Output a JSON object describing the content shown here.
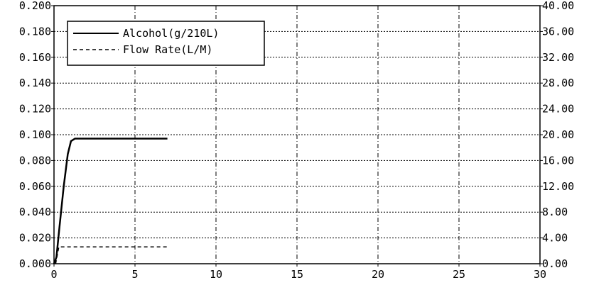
{
  "chart_data": {
    "type": "line",
    "x_ticks": [
      "0",
      "5",
      "10",
      "15",
      "20",
      "25",
      "30"
    ],
    "xlim": [
      0,
      30
    ],
    "y_left_ticks": [
      "0.000",
      "0.020",
      "0.040",
      "0.060",
      "0.080",
      "0.100",
      "0.120",
      "0.140",
      "0.160",
      "0.180",
      "0.200"
    ],
    "ylim_left": [
      0,
      0.2
    ],
    "y_right_ticks": [
      "0.00",
      "4.00",
      "8.00",
      "12.00",
      "16.00",
      "20.00",
      "24.00",
      "28.00",
      "32.00",
      "36.00",
      "40.00"
    ],
    "ylim_right": [
      0,
      40
    ],
    "grid": true,
    "legend_position": "top-left",
    "series": [
      {
        "name": "Alcohol(g/210L)",
        "axis": "left",
        "style": "solid",
        "color": "#000000",
        "x": [
          0,
          0.15,
          0.35,
          0.6,
          0.85,
          1.05,
          1.3,
          2,
          3,
          4,
          5,
          6,
          7
        ],
        "y": [
          0,
          0.005,
          0.03,
          0.06,
          0.085,
          0.095,
          0.097,
          0.097,
          0.097,
          0.097,
          0.097,
          0.097,
          0.097
        ]
      },
      {
        "name": "Flow Rate(L/M)",
        "axis": "right",
        "style": "dashed",
        "color": "#000000",
        "x": [
          0.1,
          0.3,
          7
        ],
        "y": [
          0,
          2.6,
          2.6
        ]
      }
    ]
  }
}
